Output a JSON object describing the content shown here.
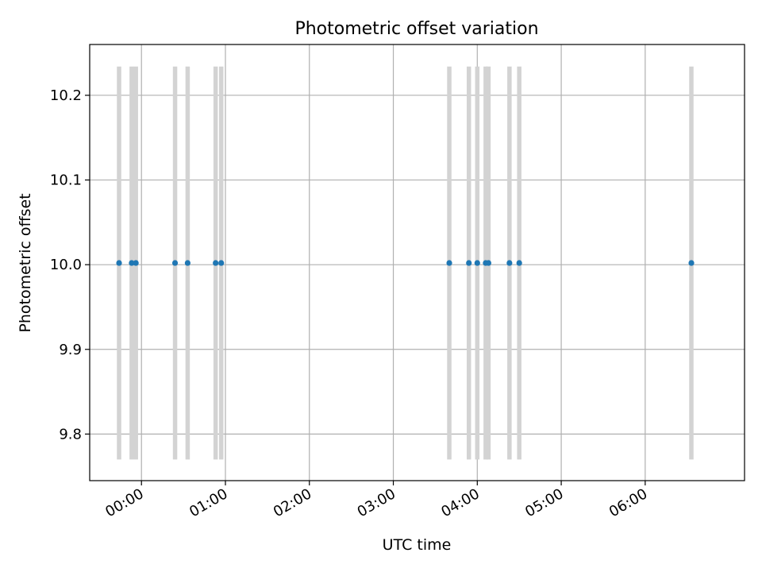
{
  "chart_data": {
    "type": "scatter",
    "title": "Photometric offset variation",
    "xlabel": "UTC time",
    "ylabel": "Photometric offset",
    "x_is_time": true,
    "xlim": [
      "2000-01-01T23:23:00",
      "2000-01-02T07:11:00"
    ],
    "ylim": [
      9.745,
      10.26
    ],
    "x_ticks": [
      {
        "value": "2000-01-02T00:00:00",
        "label": "00:00"
      },
      {
        "value": "2000-01-02T01:00:00",
        "label": "01:00"
      },
      {
        "value": "2000-01-02T02:00:00",
        "label": "02:00"
      },
      {
        "value": "2000-01-02T03:00:00",
        "label": "03:00"
      },
      {
        "value": "2000-01-02T04:00:00",
        "label": "04:00"
      },
      {
        "value": "2000-01-02T05:00:00",
        "label": "05:00"
      },
      {
        "value": "2000-01-02T06:00:00",
        "label": "06:00"
      }
    ],
    "y_ticks": [
      {
        "value": 9.8,
        "label": "9.8"
      },
      {
        "value": 9.9,
        "label": "9.9"
      },
      {
        "value": 10.0,
        "label": "10.0"
      },
      {
        "value": 10.1,
        "label": "10.1"
      },
      {
        "value": 10.2,
        "label": "10.2"
      }
    ],
    "grid": true,
    "series": [
      {
        "color": "#1f77b4",
        "error_color": "#d3d3d3",
        "points": [
          {
            "x": "2000-01-01T23:44:00",
            "y": 10.002,
            "err": 0.232
          },
          {
            "x": "2000-01-01T23:53:00",
            "y": 10.002,
            "err": 0.232
          },
          {
            "x": "2000-01-01T23:56:00",
            "y": 10.002,
            "err": 0.232
          },
          {
            "x": "2000-01-02T00:24:00",
            "y": 10.002,
            "err": 0.232
          },
          {
            "x": "2000-01-02T00:33:00",
            "y": 10.002,
            "err": 0.232
          },
          {
            "x": "2000-01-02T00:53:00",
            "y": 10.002,
            "err": 0.232
          },
          {
            "x": "2000-01-02T00:57:00",
            "y": 10.002,
            "err": 0.232
          },
          {
            "x": "2000-01-02T03:40:00",
            "y": 10.002,
            "err": 0.232
          },
          {
            "x": "2000-01-02T03:54:00",
            "y": 10.002,
            "err": 0.232
          },
          {
            "x": "2000-01-02T04:00:00",
            "y": 10.002,
            "err": 0.232
          },
          {
            "x": "2000-01-02T04:06:00",
            "y": 10.002,
            "err": 0.232
          },
          {
            "x": "2000-01-02T04:08:00",
            "y": 10.002,
            "err": 0.232
          },
          {
            "x": "2000-01-02T04:23:00",
            "y": 10.002,
            "err": 0.232
          },
          {
            "x": "2000-01-02T04:30:00",
            "y": 10.002,
            "err": 0.232
          },
          {
            "x": "2000-01-02T06:33:00",
            "y": 10.002,
            "err": 0.232
          }
        ]
      }
    ]
  }
}
